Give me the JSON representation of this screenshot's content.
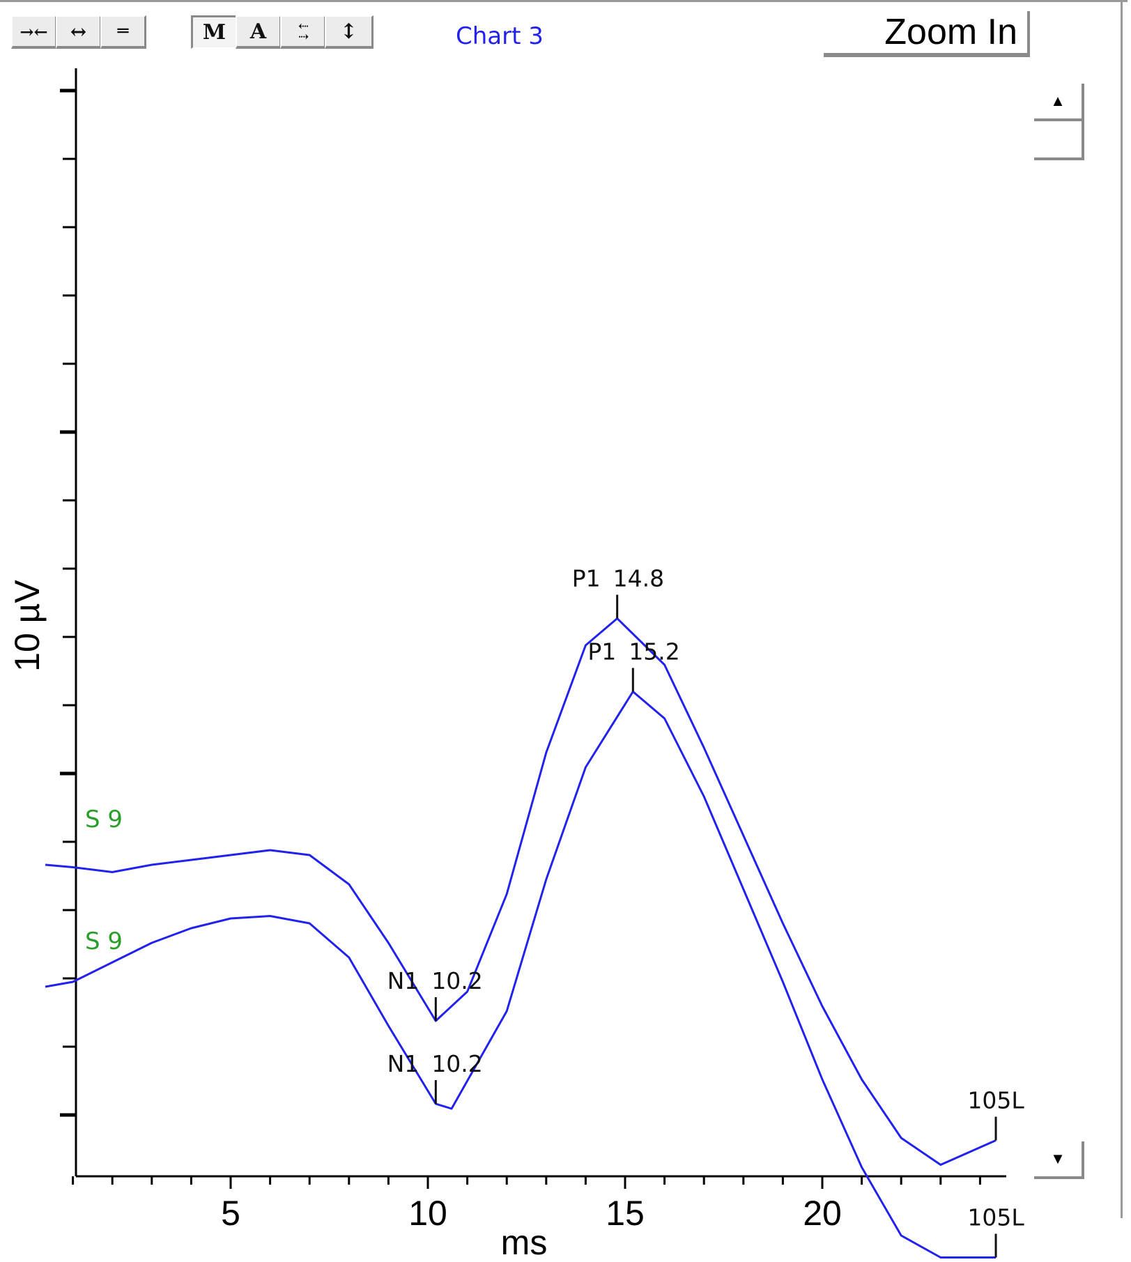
{
  "toolbar": {
    "buttons": [
      {
        "name": "compress-horizontal-button",
        "glyph": "→←"
      },
      {
        "name": "expand-horizontal-button",
        "glyph": "↔"
      },
      {
        "name": "equalize-button",
        "glyph": "═"
      },
      {
        "name": "marker-m-button",
        "glyph": "M"
      },
      {
        "name": "marker-a-button",
        "glyph": "A"
      },
      {
        "name": "compress-vertical-button",
        "glyph": "⇣⇡"
      },
      {
        "name": "expand-vertical-button",
        "glyph": "↕"
      }
    ],
    "chart_title": "Chart 3",
    "zoom_label": "Zoom In"
  },
  "scroll": {
    "up_icon": "▲",
    "down_icon": "▼"
  },
  "colors": {
    "trace": "#2222ee",
    "channel_label": "#2a9d2a",
    "axis": "#000000"
  },
  "chart_data": {
    "type": "line",
    "title": "Chart 3",
    "xlabel": "ms",
    "ylabel": "10 µV",
    "xlim": [
      0.3,
      24.5
    ],
    "x_ticks": [
      5,
      10,
      15,
      20
    ],
    "series": [
      {
        "name": "S 9",
        "end_label": "105L",
        "x": [
          0.3,
          1.0,
          2.0,
          3.0,
          4.0,
          5.0,
          6.0,
          7.0,
          8.0,
          9.0,
          10.2,
          11.0,
          12.0,
          13.0,
          14.0,
          14.8,
          16.0,
          17.0,
          18.0,
          19.0,
          20.0,
          21.0,
          22.0,
          23.0,
          24.4
        ],
        "y": [
          -3.6,
          -3.65,
          -3.75,
          -3.6,
          -3.5,
          -3.4,
          -3.3,
          -3.4,
          -4.0,
          -5.2,
          -6.8,
          -6.2,
          -4.2,
          -1.3,
          0.9,
          1.45,
          0.5,
          -1.2,
          -3.0,
          -4.8,
          -6.5,
          -8.0,
          -9.2,
          -9.75,
          -9.25
        ],
        "markers": [
          {
            "label": "N1",
            "value": "10.2",
            "x": 10.2,
            "y": -6.8
          },
          {
            "label": "P1",
            "value": "14.8",
            "x": 14.8,
            "y": 1.45
          }
        ]
      },
      {
        "name": "S 9",
        "end_label": "105L",
        "x": [
          0.3,
          1.0,
          2.0,
          3.0,
          4.0,
          5.0,
          6.0,
          7.0,
          8.0,
          9.0,
          10.2,
          10.6,
          12.0,
          13.0,
          14.0,
          15.2,
          16.0,
          17.0,
          18.0,
          19.0,
          20.0,
          21.0,
          22.0,
          23.0,
          24.4
        ],
        "y": [
          -6.1,
          -6.0,
          -5.6,
          -5.2,
          -4.9,
          -4.7,
          -4.65,
          -4.8,
          -5.5,
          -6.9,
          -8.5,
          -8.6,
          -6.6,
          -3.9,
          -1.6,
          -0.05,
          -0.6,
          -2.2,
          -4.1,
          -6.0,
          -8.0,
          -9.8,
          -11.2,
          -11.65,
          -11.65
        ],
        "markers": [
          {
            "label": "N1",
            "value": "10.2",
            "x": 10.2,
            "y": -8.5
          },
          {
            "label": "P1",
            "value": "15.2",
            "x": 15.2,
            "y": -0.05
          }
        ]
      }
    ]
  }
}
